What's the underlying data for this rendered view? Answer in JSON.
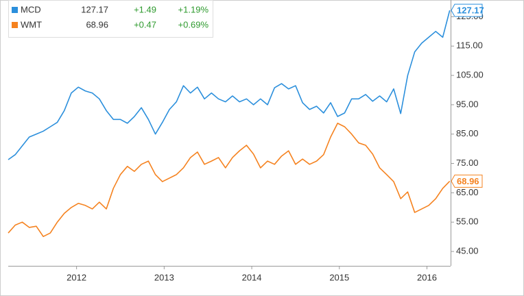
{
  "chart_data": {
    "type": "line",
    "x": [
      2011.22,
      2011.3,
      2011.38,
      2011.46,
      2011.54,
      2011.62,
      2011.7,
      2011.78,
      2011.86,
      2011.94,
      2012.02,
      2012.1,
      2012.18,
      2012.26,
      2012.34,
      2012.42,
      2012.5,
      2012.58,
      2012.66,
      2012.74,
      2012.82,
      2012.9,
      2012.98,
      2013.06,
      2013.14,
      2013.22,
      2013.3,
      2013.38,
      2013.46,
      2013.54,
      2013.62,
      2013.7,
      2013.78,
      2013.86,
      2013.94,
      2014.02,
      2014.1,
      2014.18,
      2014.26,
      2014.34,
      2014.42,
      2014.5,
      2014.58,
      2014.66,
      2014.74,
      2014.82,
      2014.9,
      2014.98,
      2015.06,
      2015.14,
      2015.22,
      2015.3,
      2015.38,
      2015.46,
      2015.54,
      2015.62,
      2015.7,
      2015.78,
      2015.86,
      2015.94,
      2016.02,
      2016.1,
      2016.18,
      2016.26
    ],
    "series": [
      {
        "name": "MCD",
        "color": "#2b8fdc",
        "change": "+1.49",
        "change_pct": "+1.19%",
        "values": [
          76.3,
          78,
          81,
          84,
          85,
          86,
          87.5,
          89,
          93,
          99,
          101,
          99.7,
          99,
          97,
          93,
          90,
          90,
          88.7,
          91,
          94,
          90,
          85,
          89,
          93.4,
          96,
          101.5,
          99,
          101,
          97,
          99,
          97,
          96,
          98,
          96,
          97,
          95,
          97,
          95,
          100.8,
          102.2,
          100.4,
          101.5,
          95.7,
          93.4,
          94.5,
          92.2,
          95.7,
          91,
          92.2,
          97,
          97,
          98.5,
          96.2,
          98,
          96,
          100.4,
          92,
          105,
          113,
          116,
          118,
          120,
          118,
          127.17
        ]
      },
      {
        "name": "WMT",
        "color": "#f5821f",
        "change": "+0.47",
        "change_pct": "+0.69%",
        "values": [
          51.3,
          54,
          55,
          53.2,
          53.6,
          50.1,
          51.3,
          55,
          58,
          60,
          61.4,
          60.7,
          59.5,
          61.8,
          59.5,
          66.5,
          71.2,
          74,
          72.3,
          74.7,
          75.8,
          71.2,
          68.8,
          70,
          71.2,
          73.5,
          77,
          78.9,
          74.7,
          75.8,
          77,
          73.5,
          77,
          79.3,
          81.2,
          78.2,
          73.5,
          75.8,
          74.7,
          77.5,
          79.3,
          74.7,
          76.5,
          74.7,
          75.8,
          78,
          84,
          88.7,
          87.5,
          85,
          82,
          81.2,
          78.2,
          73.5,
          71.2,
          68.8,
          63,
          65.3,
          58.3,
          59.5,
          60.7,
          63,
          66.5,
          68.96
        ]
      }
    ],
    "xlim": [
      2011.22,
      2016.27
    ],
    "xticks": [
      2012,
      2013,
      2014,
      2015,
      2016
    ],
    "ylim": [
      40.1,
      130.7
    ],
    "yticks": [
      {
        "value": 45,
        "label": "45.00"
      },
      {
        "value": 55,
        "label": "55.00"
      },
      {
        "value": 65,
        "label": "65.00"
      },
      {
        "value": 75,
        "label": "75.00"
      },
      {
        "value": 85,
        "label": "85.00"
      },
      {
        "value": 95,
        "label": "95.00"
      },
      {
        "value": 105,
        "label": "105.00"
      },
      {
        "value": 115,
        "label": "115.00"
      },
      {
        "value": 125,
        "label": "125.00"
      }
    ],
    "grid": false
  }
}
